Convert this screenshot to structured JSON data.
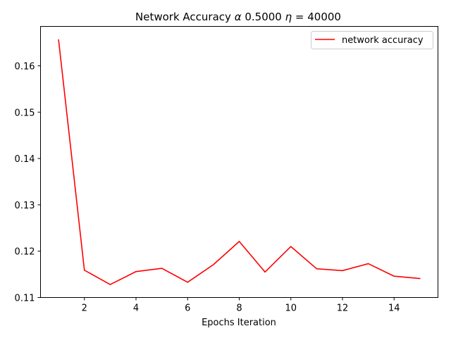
{
  "chart_data": {
    "type": "line",
    "title": {
      "prefix": "Network Accuracy ",
      "alpha_symbol": "α",
      "alpha_value": " 0.5000 ",
      "eta_symbol": "η",
      "eta_value": " = 40000"
    },
    "xlabel": "Epochs Iteration",
    "ylabel": "",
    "xlim": [
      0.3,
      15.7
    ],
    "ylim": [
      0.11,
      0.1685
    ],
    "xticks": [
      2,
      4,
      6,
      8,
      10,
      12,
      14
    ],
    "yticks": [
      0.11,
      0.12,
      0.13,
      0.14,
      0.15,
      0.16
    ],
    "ytick_format": 2,
    "grid": false,
    "legend_position": "upper right",
    "series": [
      {
        "name": "network accuracy",
        "color": "#ff0000",
        "x": [
          1,
          2,
          3,
          4,
          5,
          6,
          7,
          8,
          9,
          10,
          11,
          12,
          13,
          14,
          15
        ],
        "y": [
          0.1656,
          0.1159,
          0.1128,
          0.1156,
          0.1163,
          0.1133,
          0.1171,
          0.1221,
          0.1155,
          0.121,
          0.1162,
          0.1158,
          0.1173,
          0.1146,
          0.1141
        ]
      }
    ]
  }
}
